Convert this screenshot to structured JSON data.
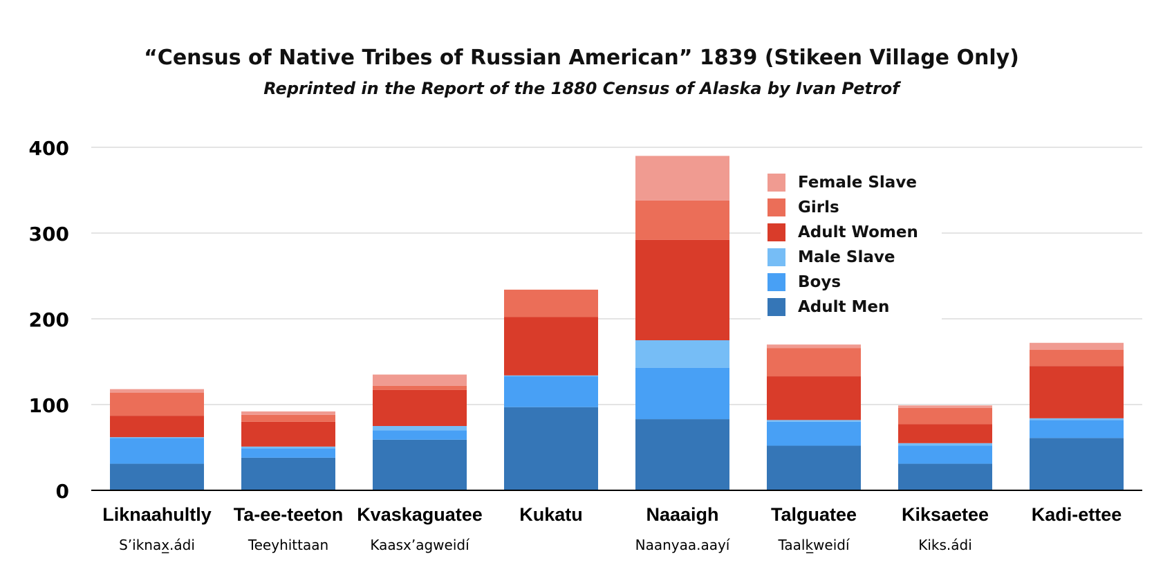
{
  "chart_data": {
    "type": "bar",
    "stacked": true,
    "title": "“Census of Native Tribes of Russian American” 1839 (Stikeen Village Only)",
    "subtitle": "Reprinted in the Report of the 1880 Census of Alaska by Ivan Petrof",
    "categories": [
      "Liknaahultly",
      "Ta-ee-teeton",
      "Kvaskaguatee",
      "Kukatu",
      "Naaaigh",
      "Talguatee",
      "Kiksaetee",
      "Kadi-ettee"
    ],
    "category_sublabels": [
      "S’iknax̲.ádi",
      "Teeyhittaan",
      "Kaasx’agweidí",
      "",
      "Naanyaa.aayí",
      "Taalk̲weidí",
      "Kiks.ádi",
      ""
    ],
    "ylim": [
      0,
      400
    ],
    "yticks": [
      0,
      100,
      200,
      300,
      400
    ],
    "grid": true,
    "legend_position": "top-right",
    "series": [
      {
        "name": "Adult Men",
        "color": "#3576b7",
        "values": [
          31,
          38,
          59,
          97,
          83,
          52,
          31,
          61
        ]
      },
      {
        "name": "Boys",
        "color": "#48a0f5",
        "values": [
          30,
          11,
          11,
          36,
          60,
          28,
          21,
          21
        ]
      },
      {
        "name": "Male Slave",
        "color": "#76bdf6",
        "values": [
          1,
          2,
          5,
          1,
          32,
          2,
          3,
          2
        ]
      },
      {
        "name": "Adult Women",
        "color": "#d93c2a",
        "values": [
          25,
          29,
          42,
          68,
          117,
          51,
          22,
          61
        ]
      },
      {
        "name": "Girls",
        "color": "#eb6e58",
        "values": [
          27,
          8,
          5,
          32,
          46,
          33,
          19,
          19
        ]
      },
      {
        "name": "Female Slave",
        "color": "#f09b91",
        "values": [
          4,
          4,
          13,
          0,
          52,
          4,
          3,
          8
        ]
      }
    ]
  }
}
